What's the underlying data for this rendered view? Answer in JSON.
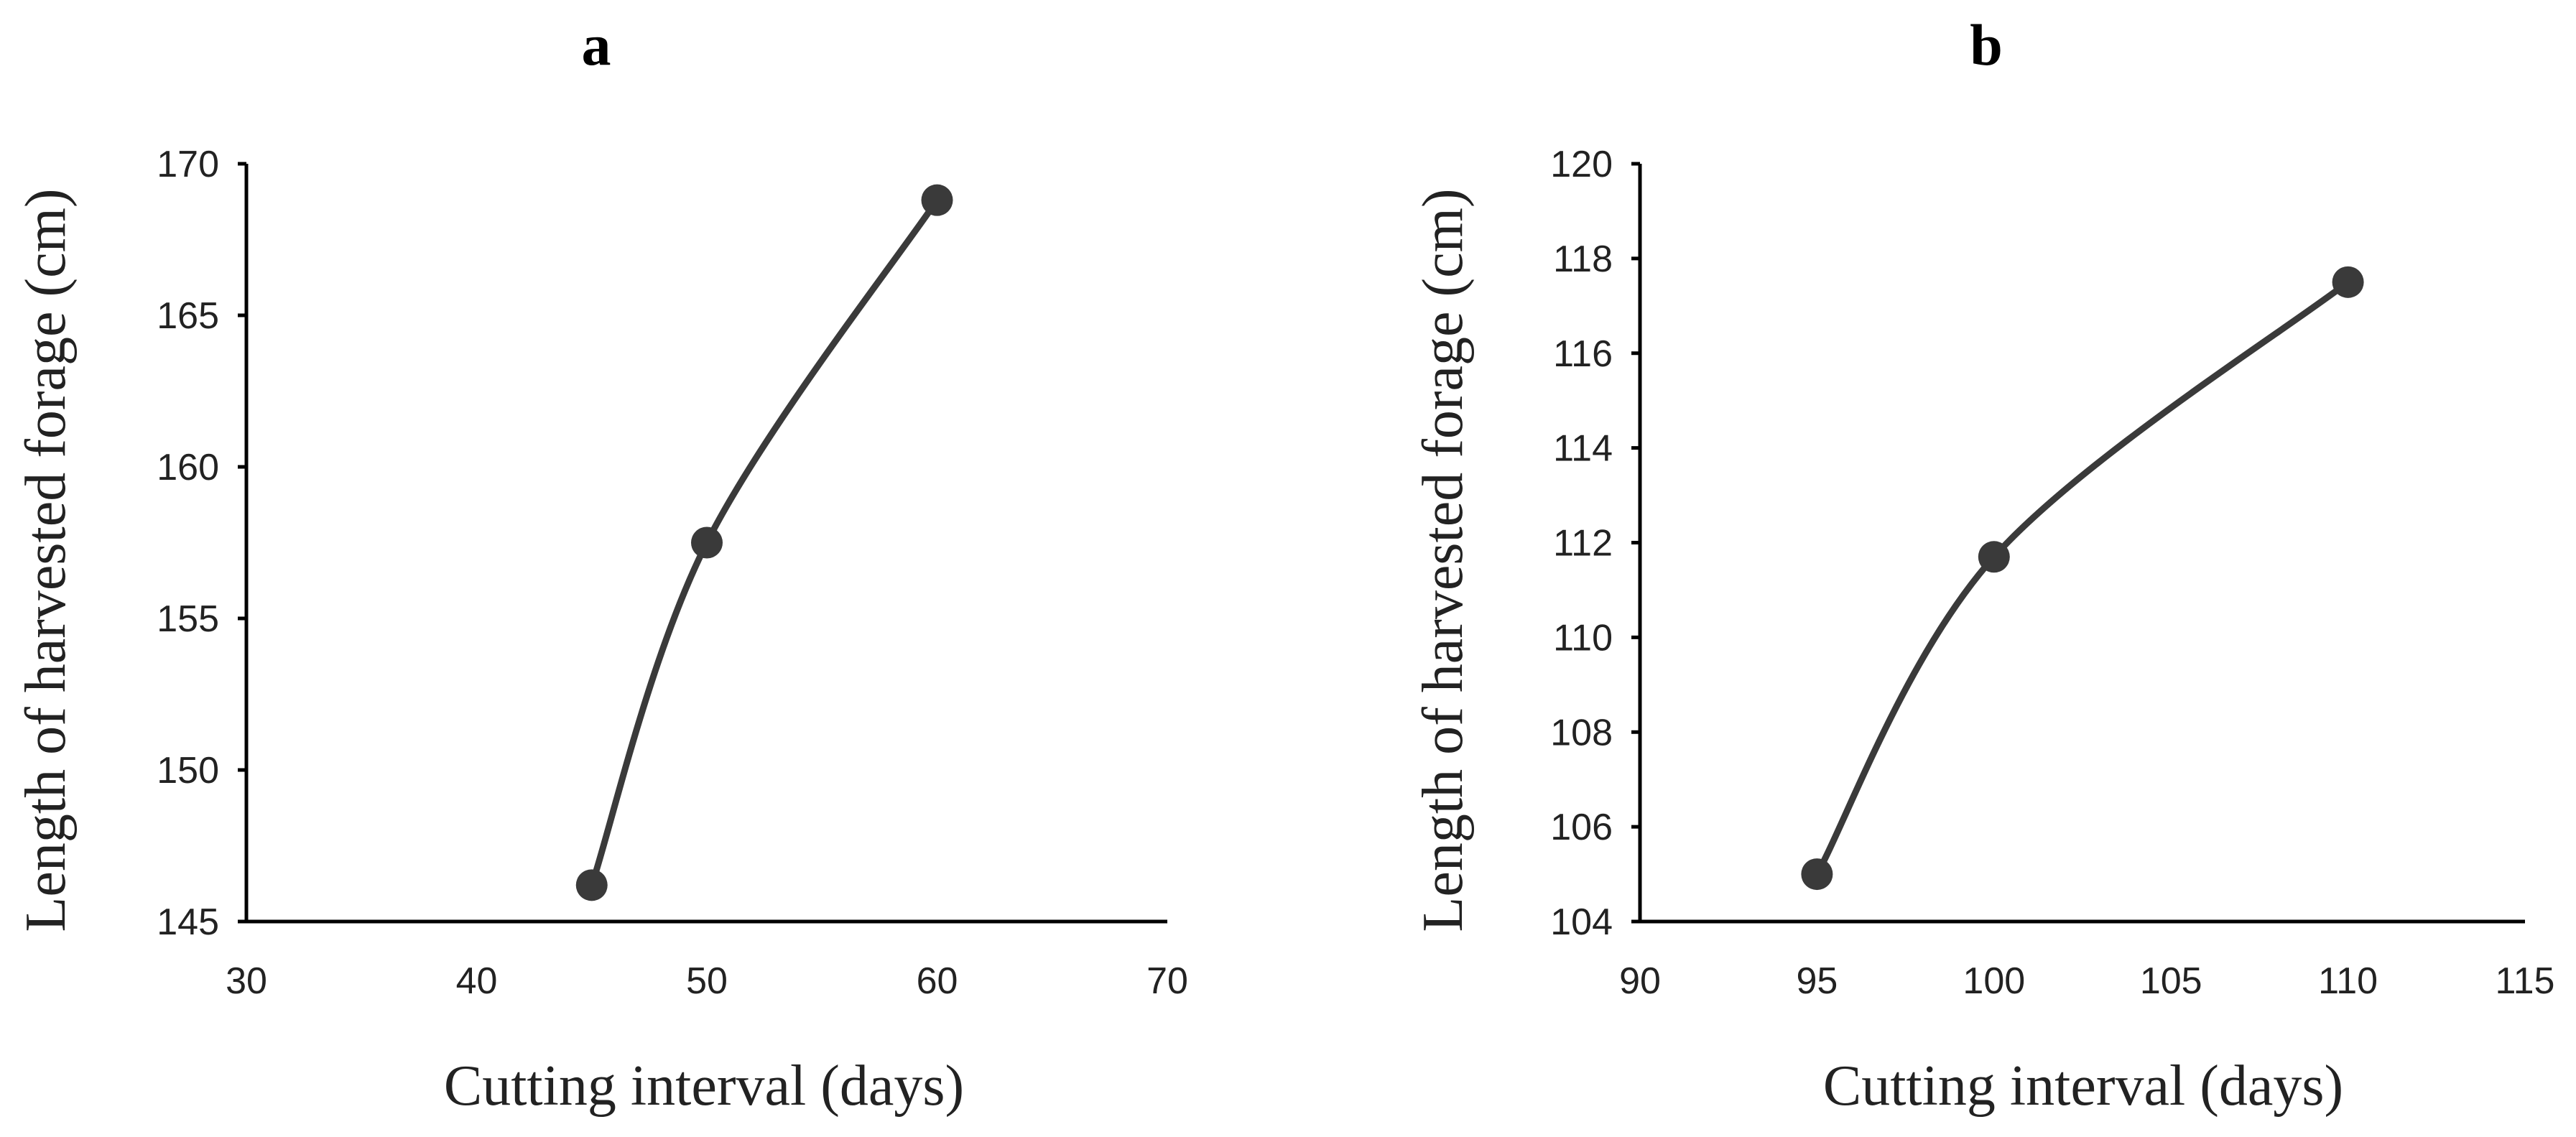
{
  "chart_data": [
    {
      "type": "line",
      "panel_label": "a",
      "title": "a",
      "xlabel": "Cutting interval (days)",
      "ylabel": "Length of harvested forage (cm)",
      "xlim": [
        30,
        70
      ],
      "ylim": [
        145,
        170
      ],
      "xticks": [
        30,
        40,
        50,
        60,
        70
      ],
      "yticks": [
        145,
        150,
        155,
        160,
        165,
        170
      ],
      "smoothed": true,
      "grid": false,
      "series": [
        {
          "name": "Length of harvested forage",
          "x": [
            45,
            50,
            60
          ],
          "y": [
            146.2,
            157.5,
            168.8
          ]
        }
      ]
    },
    {
      "type": "line",
      "panel_label": "b",
      "title": "b",
      "xlabel": "Cutting interval (days)",
      "ylabel": "Length of harvested forage (cm)",
      "xlim": [
        90,
        115
      ],
      "ylim": [
        104,
        120
      ],
      "xticks": [
        90,
        95,
        100,
        105,
        110,
        115
      ],
      "yticks": [
        104,
        106,
        108,
        110,
        112,
        114,
        116,
        118,
        120
      ],
      "smoothed": true,
      "grid": false,
      "series": [
        {
          "name": "Length of harvested forage",
          "x": [
            95,
            100,
            110
          ],
          "y": [
            105.0,
            111.7,
            117.5
          ]
        }
      ]
    }
  ],
  "colors": {
    "series": "#3a3a3a",
    "axis": "#000000",
    "text": "#222222"
  }
}
